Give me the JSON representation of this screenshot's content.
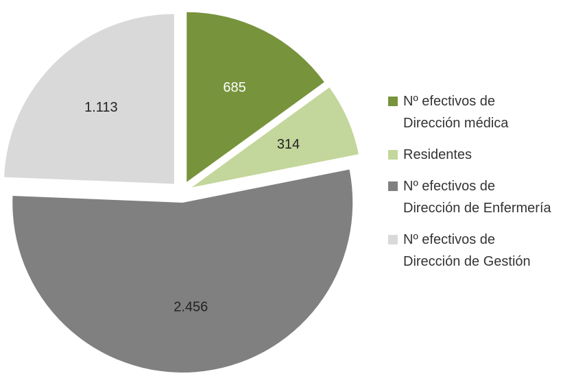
{
  "chart_data": {
    "type": "pie",
    "categories": [
      "Nº efectivos de\nDirección médica",
      "Residentes",
      "Nº efectivos de\nDirección de Enfermería",
      "Nº efectivos de\nDirección de Gestión"
    ],
    "values": [
      685,
      314,
      2456,
      1113
    ],
    "value_labels": [
      "685",
      "314",
      "2.456",
      "1.113"
    ],
    "colors": [
      "#77933c",
      "#c3d69b",
      "#808080",
      "#d9d9d9"
    ],
    "label_colors": [
      "#ffffff",
      "#222222",
      "#222222",
      "#222222"
    ],
    "legend": "right"
  }
}
